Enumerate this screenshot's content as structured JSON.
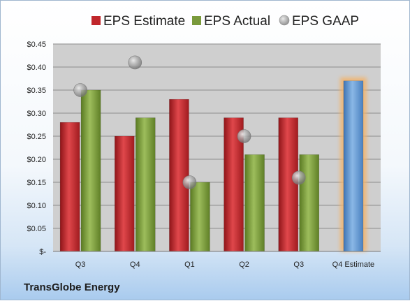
{
  "chart_data": {
    "type": "bar",
    "company": "TransGlobe Energy",
    "categories": [
      "Q3",
      "Q4",
      "Q1",
      "Q2",
      "Q3",
      "Q4 Estimate"
    ],
    "series": [
      {
        "name": "EPS Estimate",
        "kind": "bar",
        "color": "#c0262b",
        "values": [
          0.28,
          0.25,
          0.33,
          0.29,
          0.29,
          null
        ]
      },
      {
        "name": "EPS Actual",
        "kind": "bar",
        "color": "#7a9a3c",
        "values": [
          0.35,
          0.29,
          0.15,
          0.21,
          0.21,
          null
        ]
      },
      {
        "name": "EPS GAAP",
        "kind": "marker",
        "color": "#9a9a9a",
        "values": [
          0.35,
          0.41,
          0.15,
          0.25,
          0.16,
          null
        ]
      },
      {
        "name": "Q4 Estimate",
        "kind": "bar",
        "color": "#5b9bd5",
        "highlight": "#f3b36b",
        "values": [
          null,
          null,
          null,
          null,
          null,
          0.37
        ]
      }
    ],
    "ylim": [
      0,
      0.45
    ],
    "yticks": [
      0,
      0.05,
      0.1,
      0.15,
      0.2,
      0.25,
      0.3,
      0.35,
      0.4,
      0.45
    ],
    "ytick_labels": [
      "$-",
      "$0.05",
      "$0.10",
      "$0.15",
      "$0.20",
      "$0.25",
      "$0.30",
      "$0.35",
      "$0.40",
      "$0.45"
    ],
    "grid": true,
    "legend_position": "top"
  }
}
